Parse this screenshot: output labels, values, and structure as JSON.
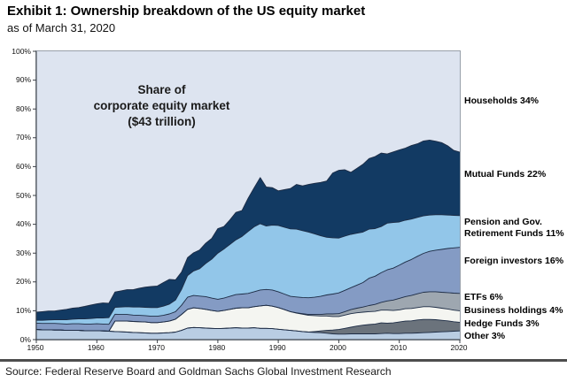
{
  "header": {
    "title": "Exhibit 1: Ownership breakdown of the US equity market",
    "subtitle": "as of March 31, 2020"
  },
  "annotation": "Share of\ncorporate equity market\n($43 trillion)",
  "source": "Source: Federal Reserve Board and Goldman Sachs Global Investment Research",
  "legend": [
    {
      "label": "Households 34%",
      "color": "#dde4f0"
    },
    {
      "label": "Mutual Funds 22%",
      "color": "#123a63"
    },
    {
      "label": "Pension and Gov.\nRetirement Funds 11%",
      "color": "#92c6e9"
    },
    {
      "label": "Foreign investors 16%",
      "color": "#849bc4"
    },
    {
      "label": "ETFs 6%",
      "color": "#9ea7b0"
    },
    {
      "label": "Business holdings 4%",
      "color": "#f4f5f1"
    },
    {
      "label": "Hedge Funds 3%",
      "color": "#6b737c"
    },
    {
      "label": "Other 3%",
      "color": "#b9cde3"
    }
  ],
  "chart_data": {
    "type": "area",
    "stacked": true,
    "title": "Share of corporate equity market ($43 trillion)",
    "x_range": [
      1950,
      2020
    ],
    "x_step_years": 1,
    "ylim": [
      0,
      100
    ],
    "unit": "%",
    "y_ticks": [
      "100%",
      "90%",
      "80%",
      "70%",
      "60%",
      "50%",
      "40%",
      "30%",
      "20%",
      "10%",
      "0%"
    ],
    "x_ticks": [
      "1950",
      "1960",
      "1970",
      "1980",
      "1990",
      "2000",
      "2010",
      "2020"
    ],
    "households_is_remainder": true,
    "households": {
      "name": "Households",
      "share_2020": 34,
      "color": "#dde4f0"
    },
    "boundary_color": "#1c2b44",
    "series": [
      {
        "name": "Other",
        "share_2020": 3,
        "color": "#b9cde3",
        "values": [
          3.5,
          3.4,
          3.4,
          3.3,
          3.3,
          3.2,
          3.2,
          3.2,
          3.1,
          3.1,
          3.1,
          3.0,
          2.9,
          2.8,
          2.7,
          2.6,
          2.5,
          2.4,
          2.3,
          2.2,
          2.2,
          2.3,
          2.4,
          2.6,
          3.2,
          4.0,
          4.2,
          4.1,
          4.0,
          3.9,
          3.8,
          3.9,
          4.0,
          4.1,
          4.0,
          4.0,
          4.1,
          3.9,
          3.9,
          3.8,
          3.6,
          3.4,
          3.2,
          3.0,
          2.8,
          2.6,
          2.5,
          2.4,
          2.2,
          2.0,
          1.9,
          1.9,
          2.0,
          2.0,
          2.0,
          2.0,
          2.0,
          2.1,
          2.2,
          2.1,
          2.1,
          2.2,
          2.2,
          2.3,
          2.4,
          2.5,
          2.6,
          2.7,
          2.8,
          2.9,
          3.0
        ]
      },
      {
        "name": "Hedge Funds",
        "share_2020": 3,
        "color": "#6b737c",
        "values": [
          0,
          0,
          0,
          0,
          0,
          0,
          0,
          0,
          0,
          0,
          0,
          0,
          0,
          0,
          0,
          0,
          0,
          0,
          0,
          0,
          0,
          0,
          0,
          0,
          0,
          0,
          0,
          0,
          0,
          0,
          0,
          0,
          0,
          0,
          0,
          0,
          0,
          0,
          0,
          0,
          0,
          0,
          0,
          0,
          0,
          0,
          0.3,
          0.6,
          1.0,
          1.3,
          1.6,
          2.0,
          2.3,
          2.7,
          3.0,
          3.2,
          3.4,
          3.7,
          3.5,
          3.7,
          4.0,
          4.2,
          4.3,
          4.5,
          4.6,
          4.5,
          4.3,
          4.0,
          3.7,
          3.3,
          3.0
        ]
      },
      {
        "name": "Business holdings",
        "share_2020": 4,
        "color": "#f4f5f1",
        "values": [
          0,
          0,
          0,
          0,
          0,
          0,
          0,
          0,
          0,
          0,
          0,
          0,
          0,
          3.6,
          3.7,
          3.8,
          3.8,
          3.8,
          3.8,
          3.7,
          3.7,
          3.8,
          4.0,
          4.5,
          5.5,
          6.5,
          6.8,
          6.7,
          6.5,
          6.2,
          6.0,
          6.2,
          6.5,
          6.8,
          7.0,
          7.0,
          7.3,
          7.8,
          8.0,
          7.8,
          7.5,
          7.0,
          6.5,
          6.2,
          6.0,
          5.8,
          5.5,
          5.2,
          5.0,
          4.7,
          4.5,
          4.6,
          4.7,
          4.6,
          4.5,
          4.5,
          4.4,
          4.4,
          4.5,
          4.3,
          4.2,
          4.3,
          4.3,
          4.3,
          4.4,
          4.4,
          4.3,
          4.2,
          4.1,
          4.0,
          4.0
        ]
      },
      {
        "name": "ETFs",
        "share_2020": 6,
        "color": "#9ea7b0",
        "values": [
          0,
          0,
          0,
          0,
          0,
          0,
          0,
          0,
          0,
          0,
          0,
          0,
          0,
          0,
          0,
          0,
          0,
          0,
          0,
          0,
          0,
          0,
          0,
          0,
          0,
          0,
          0,
          0,
          0,
          0,
          0,
          0,
          0,
          0,
          0,
          0,
          0,
          0,
          0,
          0,
          0,
          0,
          0,
          0.1,
          0.2,
          0.3,
          0.4,
          0.5,
          0.7,
          0.9,
          1.0,
          1.2,
          1.4,
          1.6,
          1.8,
          2.1,
          2.4,
          2.7,
          3.2,
          3.6,
          4.0,
          4.2,
          4.5,
          4.8,
          5.0,
          5.2,
          5.4,
          5.5,
          5.7,
          5.9,
          6.0
        ]
      },
      {
        "name": "Foreign investors",
        "share_2020": 16,
        "color": "#849bc4",
        "values": [
          2.2,
          2.2,
          2.2,
          2.3,
          2.2,
          2.2,
          2.3,
          2.3,
          2.3,
          2.3,
          2.4,
          2.4,
          2.4,
          2.4,
          2.3,
          2.3,
          2.2,
          2.2,
          2.2,
          2.2,
          2.2,
          2.3,
          2.5,
          2.6,
          3.2,
          4.2,
          4.3,
          4.3,
          4.4,
          4.3,
          4.2,
          4.3,
          4.5,
          4.7,
          4.8,
          5.0,
          5.2,
          5.5,
          5.5,
          5.6,
          5.5,
          5.4,
          5.3,
          5.5,
          5.6,
          5.8,
          6.0,
          6.3,
          6.6,
          6.9,
          7.2,
          7.4,
          7.6,
          8.0,
          8.5,
          9.5,
          9.8,
          10.3,
          10.8,
          11.1,
          11.5,
          12.0,
          12.5,
          13.0,
          13.5,
          14.0,
          14.4,
          14.9,
          15.3,
          15.7,
          16.0
        ]
      },
      {
        "name": "Pension and Gov. Retirement Funds",
        "share_2020": 11,
        "color": "#92c6e9",
        "values": [
          1.0,
          1.1,
          1.2,
          1.3,
          1.4,
          1.5,
          1.6,
          1.7,
          1.8,
          1.9,
          2.0,
          2.1,
          2.3,
          2.4,
          2.6,
          2.7,
          2.8,
          2.9,
          2.9,
          3.0,
          3.0,
          3.2,
          3.4,
          4.0,
          5.5,
          7.5,
          8.5,
          9.5,
          11.5,
          13.5,
          16.0,
          17.0,
          18.0,
          19.0,
          20.0,
          21.5,
          22.5,
          23.0,
          22.0,
          22.5,
          23.0,
          23.2,
          23.4,
          23.5,
          23.2,
          22.8,
          22.0,
          21.0,
          20.0,
          19.5,
          19.0,
          18.8,
          18.5,
          18.0,
          17.5,
          17.0,
          16.5,
          16.0,
          16.2,
          15.8,
          15.0,
          14.5,
          14.0,
          13.5,
          13.0,
          12.6,
          12.3,
          12.0,
          11.6,
          11.3,
          11.0
        ]
      },
      {
        "name": "Mutual Funds",
        "share_2020": 22,
        "color": "#123a63",
        "values": [
          2.8,
          3.0,
          3.1,
          3.0,
          3.3,
          3.6,
          3.8,
          3.9,
          4.3,
          4.7,
          4.9,
          5.2,
          5.0,
          5.3,
          5.6,
          5.9,
          6.0,
          6.5,
          7.0,
          7.3,
          7.5,
          8.2,
          8.6,
          7.0,
          6.0,
          6.2,
          6.3,
          6.5,
          7.0,
          7.2,
          8.5,
          7.8,
          8.5,
          9.5,
          9.0,
          11.5,
          13.5,
          16.0,
          13.5,
          13.0,
          12.0,
          13.0,
          14.0,
          15.5,
          15.5,
          16.5,
          17.5,
          18.5,
          19.5,
          22.5,
          23.5,
          23.0,
          21.5,
          22.5,
          23.5,
          24.5,
          25.0,
          25.5,
          24.0,
          24.5,
          25.0,
          25.0,
          25.5,
          25.5,
          26.0,
          26.0,
          25.5,
          25.0,
          24.0,
          22.5,
          22.0
        ]
      }
    ]
  }
}
